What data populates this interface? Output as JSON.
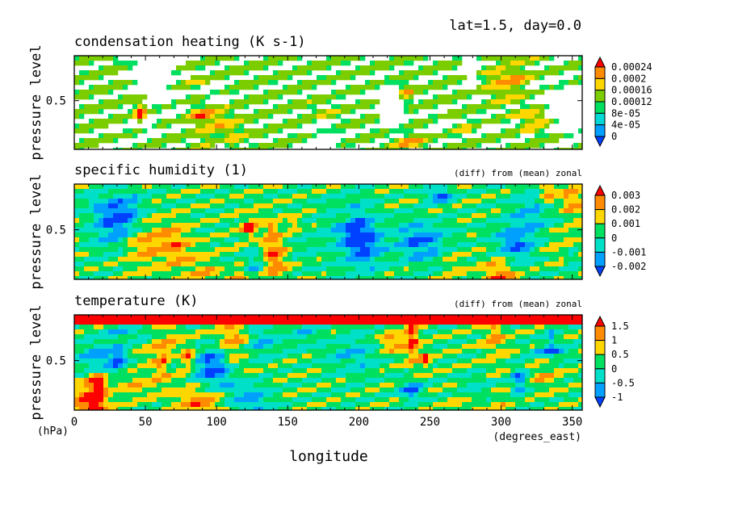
{
  "header": "lat=1.5, day=0.0",
  "chart_data": [
    {
      "type": "heatmap",
      "title": "condensation heating (K s-1)",
      "subtitle": "",
      "ylabel": "pressure level",
      "yticks": [
        "0.5"
      ],
      "xlim": [
        0,
        357
      ],
      "colorbar_labels": [
        "0.00024",
        "0.0002",
        "0.00016",
        "0.00012",
        "8e-05",
        "4e-05",
        "0"
      ],
      "colors": [
        "#ff0000",
        "#ff8c00",
        "#ffd700",
        "#7ccd00",
        "#00e060",
        "#00d7d7",
        "#00a0ff",
        "#0040ff"
      ],
      "blank_below": true
    },
    {
      "type": "heatmap",
      "title": "specific humidity (1)",
      "subtitle": "(diff) from (mean) zonal",
      "ylabel": "pressure level",
      "yticks": [
        "0.5"
      ],
      "xlim": [
        0,
        357
      ],
      "colorbar_labels": [
        "0.003",
        "0.002",
        "0.001",
        "0",
        "-0.001",
        "-0.002"
      ],
      "colors": [
        "#ff0000",
        "#ff8c00",
        "#ffd700",
        "#00e060",
        "#00e0c8",
        "#00a0ff",
        "#0040ff"
      ],
      "blank_below": false
    },
    {
      "type": "heatmap",
      "title": "temperature (K)",
      "subtitle": "(diff) from (mean) zonal",
      "ylabel": "pressure level",
      "yticks": [
        "0.5"
      ],
      "xlim": [
        0,
        357
      ],
      "colorbar_labels": [
        "1.5",
        "1",
        "0.5",
        "0",
        "-0.5",
        "-1"
      ],
      "colors": [
        "#ff0000",
        "#ff8c00",
        "#ffd700",
        "#00e060",
        "#00e0c8",
        "#00a0ff",
        "#0040ff"
      ],
      "blank_below": false
    }
  ],
  "xaxis": {
    "ticks": [
      0,
      50,
      100,
      150,
      200,
      250,
      300,
      350
    ],
    "label": "longitude",
    "units": "(degrees_east)",
    "yunits": "(hPa)"
  }
}
